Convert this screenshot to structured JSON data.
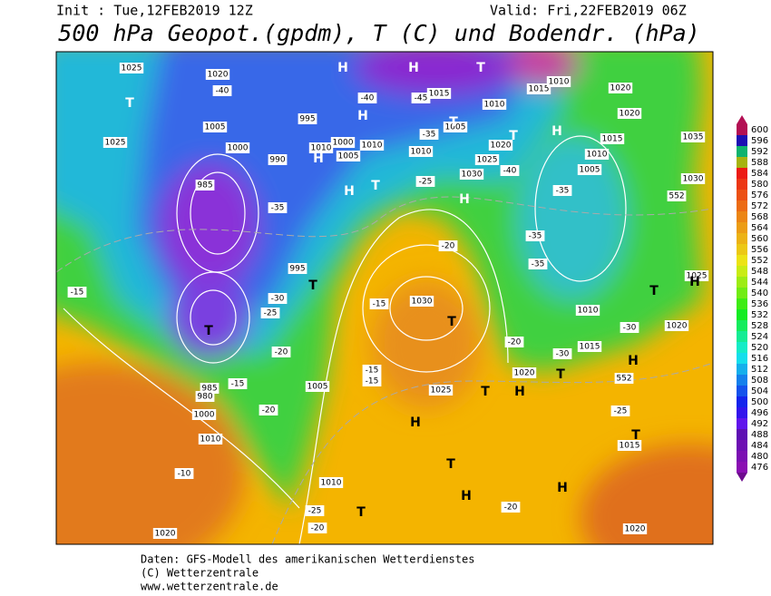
{
  "header": {
    "init": "Init : Tue,12FEB2019 12Z",
    "valid": "Valid: Fri,22FEB2019 06Z",
    "title": "500 hPa Geopot.(gpdm), T (C) und Bodendr. (hPa)"
  },
  "colorbar": {
    "labels": [
      600,
      596,
      592,
      588,
      584,
      580,
      576,
      572,
      568,
      564,
      560,
      556,
      552,
      548,
      544,
      540,
      536,
      532,
      528,
      524,
      520,
      516,
      512,
      508,
      504,
      500,
      496,
      492,
      488,
      484,
      480,
      476
    ]
  },
  "map": {
    "labels": [
      "1025",
      "1020",
      "-40",
      "1005",
      "1000",
      "1025",
      "995",
      "1010",
      "1000",
      "1010",
      "1005",
      "990",
      "985",
      "-35",
      "995",
      "-30",
      "-25",
      "-20",
      "-15",
      "985",
      "980",
      "1000",
      "1010",
      "-10",
      "1020",
      "-20",
      "-25",
      "1010",
      "1005",
      "-20",
      "-15",
      "1030",
      "-15",
      "-15",
      "-15",
      "1025",
      "-20",
      "-25",
      "1030",
      "1020",
      "1025",
      "1010",
      "-35",
      "1005",
      "1010",
      "1015",
      "-40",
      "-45",
      "1015",
      "1010",
      "1020",
      "1020",
      "1015",
      "1010",
      "1005",
      "1035",
      "1030",
      "552",
      "1025",
      "1020",
      "-30",
      "1010",
      "1015",
      "-30",
      "1020",
      "552",
      "-25",
      "1015",
      "1020",
      "-20",
      "-35",
      "-35",
      "-35",
      "-20",
      "-40"
    ],
    "letters": [
      "H",
      "H",
      "T",
      "T",
      "H",
      "T",
      "T",
      "H",
      "H",
      "H",
      "T",
      "H",
      "T",
      "T",
      "H",
      "T",
      "H",
      "T",
      "H",
      "T",
      "H",
      "T",
      "H",
      "T",
      "H",
      "T",
      "T"
    ]
  },
  "footer": {
    "lines": [
      "Daten: GFS-Modell des amerikanischen Wetterdienstes",
      "(C) Wetterzentrale",
      "www.wetterzentrale.de"
    ]
  }
}
